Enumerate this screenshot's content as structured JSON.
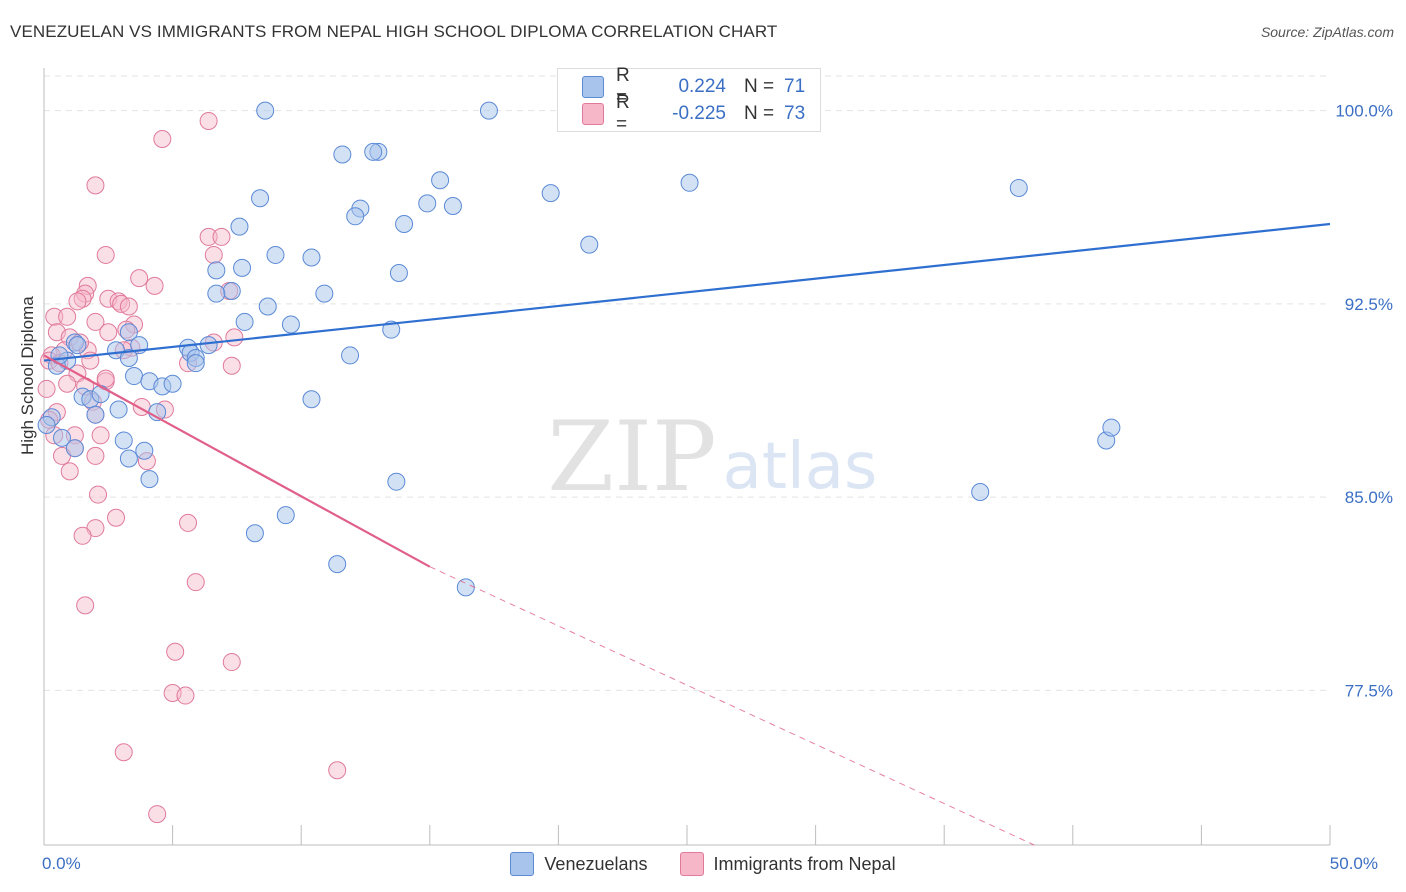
{
  "title": "VENEZUELAN VS IMMIGRANTS FROM NEPAL HIGH SCHOOL DIPLOMA CORRELATION CHART",
  "source": "Source: ZipAtlas.com",
  "watermark": {
    "zip": "ZIP",
    "atlas": "atlas"
  },
  "legend": {
    "r_label": "R =",
    "n_label": "N =",
    "rows": [
      {
        "name": "Venezuelans",
        "r": "0.224",
        "n": "71"
      },
      {
        "name": "Immigrants from Nepal",
        "r": "-0.225",
        "n": "73"
      }
    ]
  },
  "colors": {
    "blue_fill": "#a8c4ec",
    "blue_stroke": "#5b8ad6",
    "blue_line": "#2f6fd0",
    "pink_fill": "#f6b7c9",
    "pink_stroke": "#e07a9c",
    "pink_line": "#e0608a",
    "axis_text": "#3b6fc4",
    "grid": "#e3e3e3"
  },
  "chart_data": {
    "type": "scatter",
    "title": "VENEZUELAN VS IMMIGRANTS FROM NEPAL HIGH SCHOOL DIPLOMA CORRELATION CHART",
    "xlabel": "",
    "ylabel": "High School Diploma",
    "xlim": [
      0,
      50
    ],
    "ylim": [
      71.5,
      101.5
    ],
    "x_tick_labels": [
      {
        "value": 0,
        "label": "0.0%"
      },
      {
        "value": 50,
        "label": "50.0%"
      }
    ],
    "y_ticks": [
      {
        "value": 100,
        "label": "100.0%"
      },
      {
        "value": 92.5,
        "label": "92.5%"
      },
      {
        "value": 85,
        "label": "85.0%"
      },
      {
        "value": 77.5,
        "label": "77.5%"
      }
    ],
    "x_minor_ticks": [
      0,
      5,
      10,
      15,
      20,
      25,
      30,
      35,
      40,
      45,
      50
    ],
    "series": [
      {
        "name": "Venezuelans",
        "r": 0.224,
        "n": 71,
        "trend": {
          "x": [
            0,
            50
          ],
          "y": [
            90.3,
            95.6
          ],
          "style": "solid"
        },
        "points": [
          [
            8.6,
            100.0
          ],
          [
            17.3,
            100.0
          ],
          [
            11.6,
            98.3
          ],
          [
            13.0,
            98.4
          ],
          [
            15.4,
            97.3
          ],
          [
            25.1,
            97.2
          ],
          [
            37.9,
            97.0
          ],
          [
            8.4,
            96.6
          ],
          [
            14.9,
            96.4
          ],
          [
            15.9,
            96.3
          ],
          [
            19.7,
            96.8
          ],
          [
            12.3,
            96.2
          ],
          [
            12.1,
            95.9
          ],
          [
            7.6,
            95.5
          ],
          [
            14.0,
            95.6
          ],
          [
            21.2,
            94.8
          ],
          [
            9.0,
            94.4
          ],
          [
            10.4,
            94.3
          ],
          [
            6.7,
            93.8
          ],
          [
            7.7,
            93.9
          ],
          [
            13.8,
            93.7
          ],
          [
            7.3,
            93.0
          ],
          [
            6.7,
            92.9
          ],
          [
            10.9,
            92.9
          ],
          [
            8.7,
            92.4
          ],
          [
            7.8,
            91.8
          ],
          [
            9.6,
            91.7
          ],
          [
            11.9,
            90.5
          ],
          [
            13.5,
            91.5
          ],
          [
            3.3,
            91.4
          ],
          [
            1.2,
            91.0
          ],
          [
            3.7,
            90.9
          ],
          [
            5.6,
            90.8
          ],
          [
            6.4,
            90.9
          ],
          [
            2.8,
            90.7
          ],
          [
            5.7,
            90.6
          ],
          [
            5.9,
            90.4
          ],
          [
            0.9,
            90.3
          ],
          [
            0.5,
            90.1
          ],
          [
            3.3,
            90.4
          ],
          [
            5.9,
            90.2
          ],
          [
            3.5,
            89.7
          ],
          [
            4.1,
            89.5
          ],
          [
            4.6,
            89.3
          ],
          [
            5.0,
            89.4
          ],
          [
            1.5,
            88.9
          ],
          [
            1.8,
            88.8
          ],
          [
            2.9,
            88.4
          ],
          [
            4.4,
            88.3
          ],
          [
            2.0,
            88.2
          ],
          [
            10.4,
            88.8
          ],
          [
            0.3,
            88.1
          ],
          [
            0.1,
            87.8
          ],
          [
            0.7,
            87.3
          ],
          [
            3.1,
            87.2
          ],
          [
            1.2,
            86.9
          ],
          [
            3.9,
            86.8
          ],
          [
            3.3,
            86.5
          ],
          [
            4.1,
            85.7
          ],
          [
            13.7,
            85.6
          ],
          [
            36.4,
            85.2
          ],
          [
            41.3,
            87.2
          ],
          [
            41.5,
            87.7
          ],
          [
            9.4,
            84.3
          ],
          [
            8.2,
            83.6
          ],
          [
            11.4,
            82.4
          ],
          [
            16.4,
            81.5
          ],
          [
            12.8,
            98.4
          ],
          [
            1.3,
            90.9
          ],
          [
            0.6,
            90.5
          ],
          [
            2.2,
            89.0
          ]
        ]
      },
      {
        "name": "Immigrants from Nepal",
        "r": -0.225,
        "n": 73,
        "trend": {
          "x": [
            0,
            15
          ],
          "y": [
            90.5,
            82.3
          ],
          "style": "solid"
        },
        "trend_extension": {
          "x": [
            15,
            38.5
          ],
          "y": [
            82.3,
            71.5
          ],
          "style": "dashed"
        },
        "points": [
          [
            6.4,
            99.6
          ],
          [
            4.6,
            98.9
          ],
          [
            2.0,
            97.1
          ],
          [
            6.4,
            95.1
          ],
          [
            6.9,
            95.1
          ],
          [
            2.4,
            94.4
          ],
          [
            6.6,
            94.4
          ],
          [
            3.7,
            93.5
          ],
          [
            1.7,
            93.2
          ],
          [
            4.3,
            93.2
          ],
          [
            1.6,
            92.9
          ],
          [
            1.5,
            92.7
          ],
          [
            1.3,
            92.6
          ],
          [
            7.2,
            93.0
          ],
          [
            2.5,
            92.7
          ],
          [
            2.9,
            92.6
          ],
          [
            3.0,
            92.5
          ],
          [
            3.3,
            92.4
          ],
          [
            0.4,
            92.0
          ],
          [
            0.9,
            92.0
          ],
          [
            2.0,
            91.8
          ],
          [
            3.5,
            91.7
          ],
          [
            0.5,
            91.4
          ],
          [
            1.0,
            91.2
          ],
          [
            2.5,
            91.4
          ],
          [
            3.2,
            91.5
          ],
          [
            0.8,
            90.7
          ],
          [
            3.4,
            90.8
          ],
          [
            1.7,
            90.7
          ],
          [
            0.3,
            90.5
          ],
          [
            0.2,
            90.3
          ],
          [
            0.6,
            90.2
          ],
          [
            1.8,
            90.3
          ],
          [
            5.6,
            90.2
          ],
          [
            7.3,
            90.1
          ],
          [
            1.3,
            89.8
          ],
          [
            2.4,
            89.5
          ],
          [
            0.9,
            89.4
          ],
          [
            1.6,
            89.3
          ],
          [
            1.9,
            88.7
          ],
          [
            0.5,
            88.3
          ],
          [
            3.8,
            88.5
          ],
          [
            4.7,
            88.4
          ],
          [
            2.0,
            88.2
          ],
          [
            0.2,
            88.0
          ],
          [
            0.4,
            87.4
          ],
          [
            2.2,
            87.4
          ],
          [
            1.2,
            87.4
          ],
          [
            1.2,
            86.9
          ],
          [
            0.7,
            86.6
          ],
          [
            2.0,
            86.6
          ],
          [
            4.0,
            86.4
          ],
          [
            1.0,
            86.0
          ],
          [
            2.1,
            85.1
          ],
          [
            2.8,
            84.2
          ],
          [
            2.0,
            83.8
          ],
          [
            1.5,
            83.5
          ],
          [
            5.6,
            84.0
          ],
          [
            5.9,
            81.7
          ],
          [
            1.6,
            80.8
          ],
          [
            5.1,
            79.0
          ],
          [
            7.3,
            78.6
          ],
          [
            5.0,
            77.4
          ],
          [
            5.5,
            77.3
          ],
          [
            3.1,
            75.1
          ],
          [
            11.4,
            74.4
          ],
          [
            4.4,
            72.7
          ],
          [
            6.6,
            91.0
          ],
          [
            7.4,
            91.2
          ],
          [
            0.1,
            89.2
          ],
          [
            2.4,
            89.6
          ],
          [
            3.1,
            90.7
          ],
          [
            1.4,
            91.0
          ]
        ]
      }
    ]
  }
}
